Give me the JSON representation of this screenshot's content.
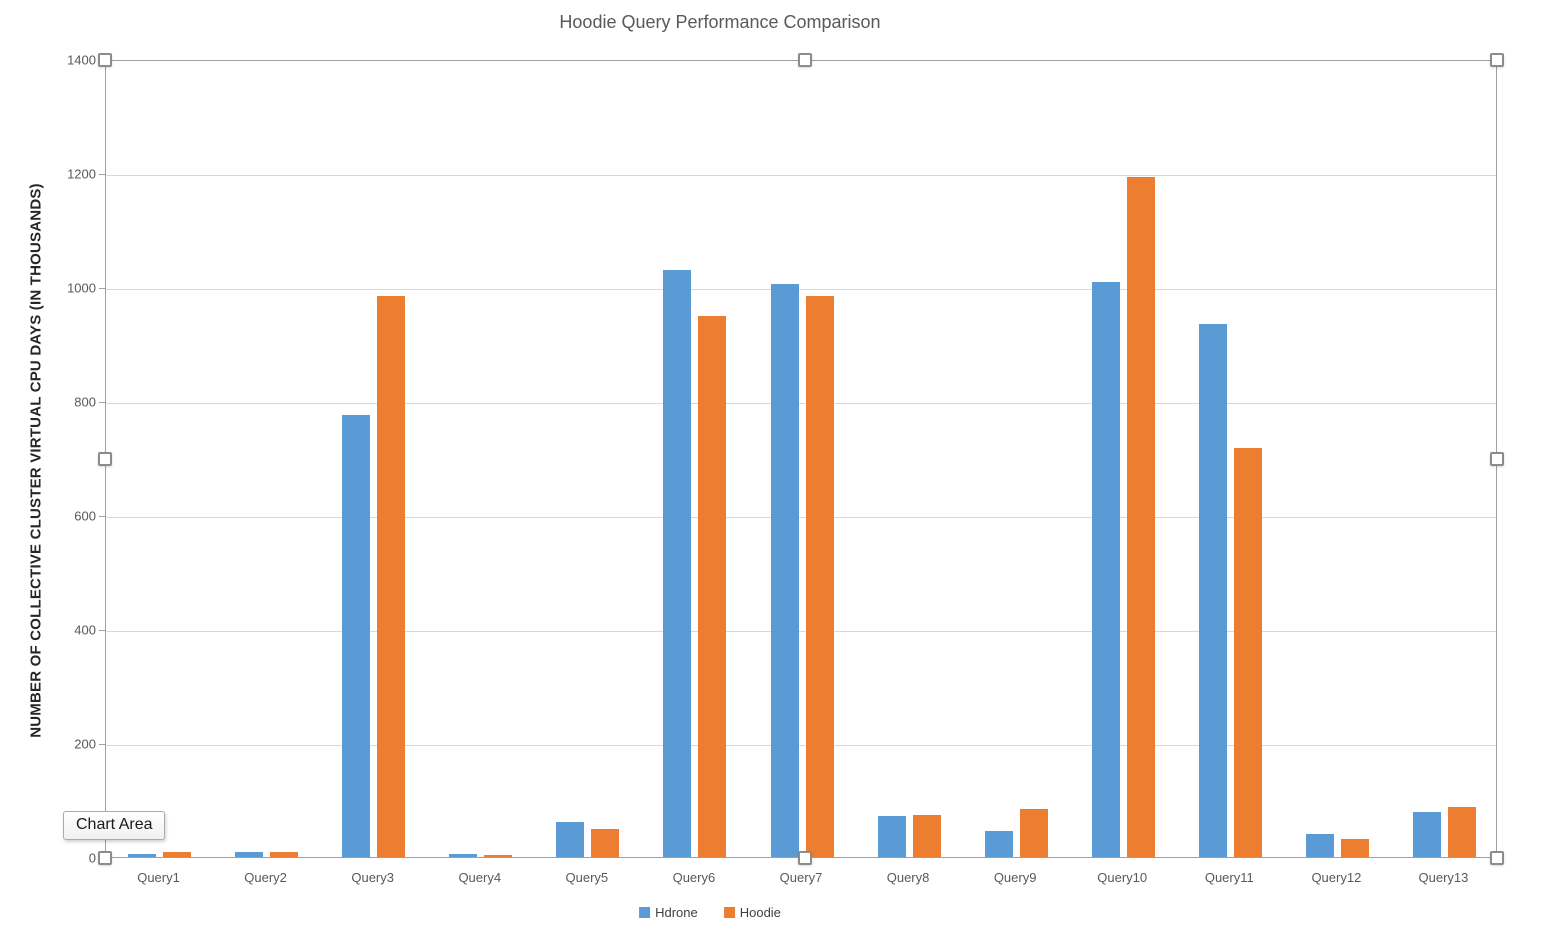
{
  "chart_data": {
    "type": "bar",
    "title": "Hoodie Query Performance Comparison",
    "xlabel": "",
    "ylabel": "NUMBER OF COLLECTIVE CLUSTER VIRTUAL CPU DAYS (IN THOUSANDS)",
    "categories": [
      "Query1",
      "Query2",
      "Query3",
      "Query4",
      "Query5",
      "Query6",
      "Query7",
      "Query8",
      "Query9",
      "Query10",
      "Query11",
      "Query12",
      "Query13"
    ],
    "series": [
      {
        "name": "Hdrone",
        "color": "#5B9BD5",
        "values": [
          5,
          9,
          775,
          5,
          62,
          1030,
          1005,
          72,
          46,
          1008,
          935,
          40,
          79
        ]
      },
      {
        "name": "Hoodie",
        "color": "#ED7D31",
        "values": [
          8,
          8,
          985,
          4,
          50,
          950,
          985,
          73,
          84,
          1193,
          718,
          32,
          88
        ]
      }
    ],
    "ylim": [
      0,
      1400
    ],
    "yticks": [
      0,
      200,
      400,
      600,
      800,
      1000,
      1200,
      1400
    ],
    "grid": true,
    "legend_position": "bottom"
  },
  "tooltip": {
    "label": "Chart Area"
  },
  "selection": {
    "handle_count": 8
  },
  "colors": {
    "gridline": "#d9d9d9",
    "axis": "#a0a0a0",
    "tick_text": "#595959",
    "title_text": "#595959"
  }
}
